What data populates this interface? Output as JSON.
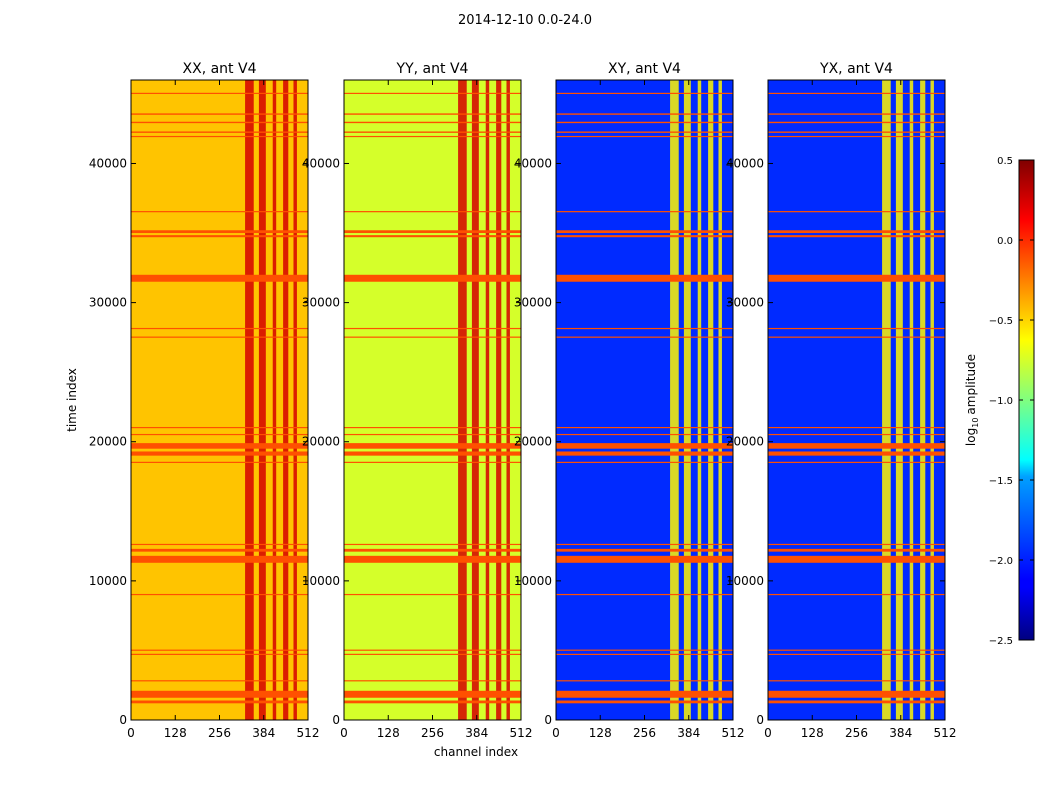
{
  "suptitle": "2014-12-10 0.0-24.0",
  "chart_data": {
    "type": "heatmap",
    "xlabel": "channel index",
    "ylabel": "time index",
    "colorbar_label": "log10 amplitude",
    "colorbar_label_base": "log",
    "colorbar_label_sub": "10",
    "colorbar_label_rest": "amplitude",
    "colormap": "jet",
    "color_range": [
      -2.5,
      0.5
    ],
    "colorbar_ticks": [
      0.5,
      0.0,
      -0.5,
      -1.0,
      -1.5,
      -2.0,
      -2.5
    ],
    "colorbar_tick_labels": [
      "0.5",
      "0.0",
      "−0.5",
      "−1.0",
      "−1.5",
      "−2.0",
      "−2.5"
    ],
    "xlim": [
      0,
      512
    ],
    "ylim": [
      0,
      46000
    ],
    "x_ticks": [
      0,
      128,
      256,
      384,
      512
    ],
    "x_tick_labels": [
      "0",
      "128",
      "256",
      "384",
      "512"
    ],
    "y_ticks": [
      0,
      10000,
      20000,
      30000,
      40000
    ],
    "y_tick_labels": [
      "0",
      "10000",
      "20000",
      "30000",
      "40000"
    ],
    "panels": [
      {
        "title": "XX, ant V4",
        "background_level": -0.45,
        "active_band_level": 0.25
      },
      {
        "title": "YY, ant V4",
        "background_level": -0.75,
        "active_band_level": 0.25
      },
      {
        "title": "XY, ant V4",
        "background_level": -2.0,
        "active_band_level": -0.6
      },
      {
        "title": "YX, ant V4",
        "background_level": -2.0,
        "active_band_level": -0.6
      }
    ],
    "flagged_time_ranges": [
      [
        31500,
        32000
      ],
      [
        19000,
        19300
      ],
      [
        19500,
        19900
      ],
      [
        1600,
        2100
      ],
      [
        1200,
        1400
      ],
      [
        11300,
        11800
      ],
      [
        12100,
        12300
      ],
      [
        35000,
        35200
      ],
      [
        34700,
        34850
      ],
      [
        45000,
        45080
      ],
      [
        43500,
        43600
      ],
      [
        42900,
        43000
      ],
      [
        42200,
        42300
      ],
      [
        41900,
        41980
      ],
      [
        36500,
        36580
      ],
      [
        28100,
        28180
      ],
      [
        27500,
        27560
      ],
      [
        21000,
        21060
      ],
      [
        20500,
        20560
      ],
      [
        18500,
        18560
      ],
      [
        12600,
        12660
      ],
      [
        5000,
        5060
      ],
      [
        4700,
        4760
      ],
      [
        2800,
        2860
      ],
      [
        9000,
        9060
      ]
    ],
    "active_channel_ranges": [
      [
        330,
        355
      ],
      [
        370,
        390
      ],
      [
        410,
        420
      ],
      [
        440,
        455
      ],
      [
        470,
        480
      ]
    ]
  }
}
